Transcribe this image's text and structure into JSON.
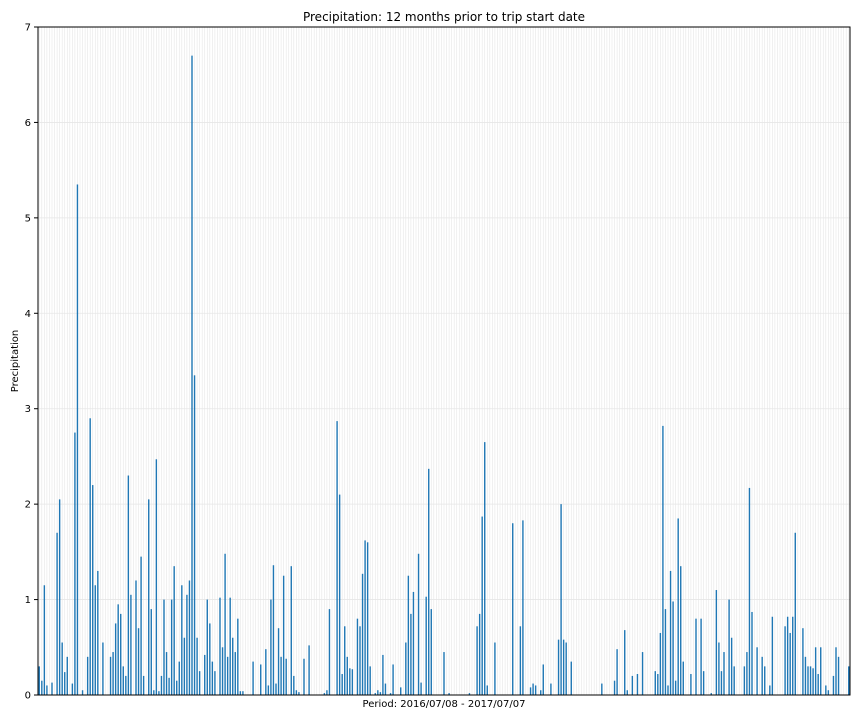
{
  "chart_data": {
    "type": "bar",
    "title": "Precipitation: 12 months prior to trip start date",
    "xlabel": "Period: 2016/07/08 - 2017/07/07",
    "ylabel": "Precipitation",
    "ylim": [
      0,
      7
    ],
    "yticks": [
      0,
      1,
      2,
      3,
      4,
      5,
      6,
      7
    ],
    "grid": true,
    "bar_color": "#1f77b4",
    "grid_color": "#e6e6e6",
    "values": [
      0.3,
      0.15,
      1.15,
      0.1,
      0.0,
      0.13,
      0.0,
      1.7,
      2.05,
      0.55,
      0.24,
      0.4,
      0.0,
      0.12,
      2.75,
      5.35,
      0.0,
      0.05,
      0.0,
      0.4,
      2.9,
      2.2,
      1.15,
      1.3,
      0.0,
      0.55,
      0.0,
      0.0,
      0.4,
      0.45,
      0.75,
      0.95,
      0.85,
      0.3,
      0.2,
      2.3,
      1.05,
      0.0,
      1.2,
      0.7,
      1.45,
      0.2,
      0.0,
      2.05,
      0.9,
      0.05,
      2.47,
      0.04,
      0.2,
      1.0,
      0.45,
      0.18,
      1.0,
      1.35,
      0.15,
      0.35,
      1.15,
      0.6,
      1.05,
      1.2,
      6.7,
      3.35,
      0.6,
      0.25,
      0.0,
      0.42,
      1.0,
      0.75,
      0.35,
      0.25,
      0.0,
      1.02,
      0.5,
      1.48,
      0.4,
      1.02,
      0.6,
      0.45,
      0.8,
      0.04,
      0.04,
      0.0,
      0.0,
      0.0,
      0.35,
      0.0,
      0.0,
      0.32,
      0.0,
      0.48,
      0.1,
      1.0,
      1.36,
      0.12,
      0.7,
      0.4,
      1.25,
      0.38,
      0.0,
      1.35,
      0.2,
      0.05,
      0.03,
      0.0,
      0.38,
      0.0,
      0.52,
      0.0,
      0.0,
      0.0,
      0.0,
      0.0,
      0.02,
      0.05,
      0.9,
      0.0,
      0.0,
      2.87,
      2.1,
      0.22,
      0.72,
      0.4,
      0.28,
      0.27,
      0.0,
      0.8,
      0.72,
      1.27,
      1.62,
      1.6,
      0.3,
      0.0,
      0.02,
      0.05,
      0.03,
      0.42,
      0.12,
      0.0,
      0.02,
      0.32,
      0.0,
      0.0,
      0.08,
      0.0,
      0.55,
      1.25,
      0.85,
      1.08,
      0.0,
      1.48,
      0.13,
      0.0,
      1.03,
      2.37,
      0.9,
      0.0,
      0.0,
      0.0,
      0.0,
      0.45,
      0.0,
      0.02,
      0.0,
      0.0,
      0.0,
      0.0,
      0.0,
      0.0,
      0.0,
      0.02,
      0.0,
      0.0,
      0.72,
      0.85,
      1.87,
      2.65,
      0.1,
      0.0,
      0.0,
      0.55,
      0.0,
      0.0,
      0.0,
      0.0,
      0.0,
      0.0,
      1.8,
      0.0,
      0.0,
      0.72,
      1.83,
      0.0,
      0.0,
      0.08,
      0.12,
      0.1,
      0.0,
      0.05,
      0.32,
      0.0,
      0.0,
      0.12,
      0.0,
      0.0,
      0.58,
      2.0,
      0.58,
      0.55,
      0.0,
      0.35,
      0.0,
      0.0,
      0.0,
      0.0,
      0.0,
      0.0,
      0.0,
      0.0,
      0.0,
      0.0,
      0.0,
      0.12,
      0.0,
      0.0,
      0.0,
      0.0,
      0.15,
      0.48,
      0.0,
      0.0,
      0.68,
      0.05,
      0.0,
      0.2,
      0.0,
      0.22,
      0.0,
      0.45,
      0.0,
      0.0,
      0.0,
      0.0,
      0.25,
      0.22,
      0.65,
      2.82,
      0.9,
      0.1,
      1.3,
      0.98,
      0.15,
      1.85,
      1.35,
      0.35,
      0.0,
      0.0,
      0.22,
      0.0,
      0.8,
      0.0,
      0.8,
      0.25,
      0.0,
      0.0,
      0.02,
      0.0,
      1.1,
      0.55,
      0.25,
      0.45,
      0.0,
      1.0,
      0.6,
      0.3,
      0.0,
      0.0,
      0.0,
      0.3,
      0.45,
      2.17,
      0.87,
      0.0,
      0.5,
      0.0,
      0.4,
      0.3,
      0.0,
      0.1,
      0.82,
      0.0,
      0.0,
      0.0,
      0.0,
      0.72,
      0.82,
      0.65,
      0.82,
      1.7,
      0.0,
      0.0,
      0.7,
      0.4,
      0.3,
      0.3,
      0.28,
      0.5,
      0.22,
      0.5,
      0.0,
      0.1,
      0.05,
      0.0,
      0.2,
      0.5,
      0.4,
      0.0,
      0.0,
      0.0,
      0.3
    ]
  }
}
